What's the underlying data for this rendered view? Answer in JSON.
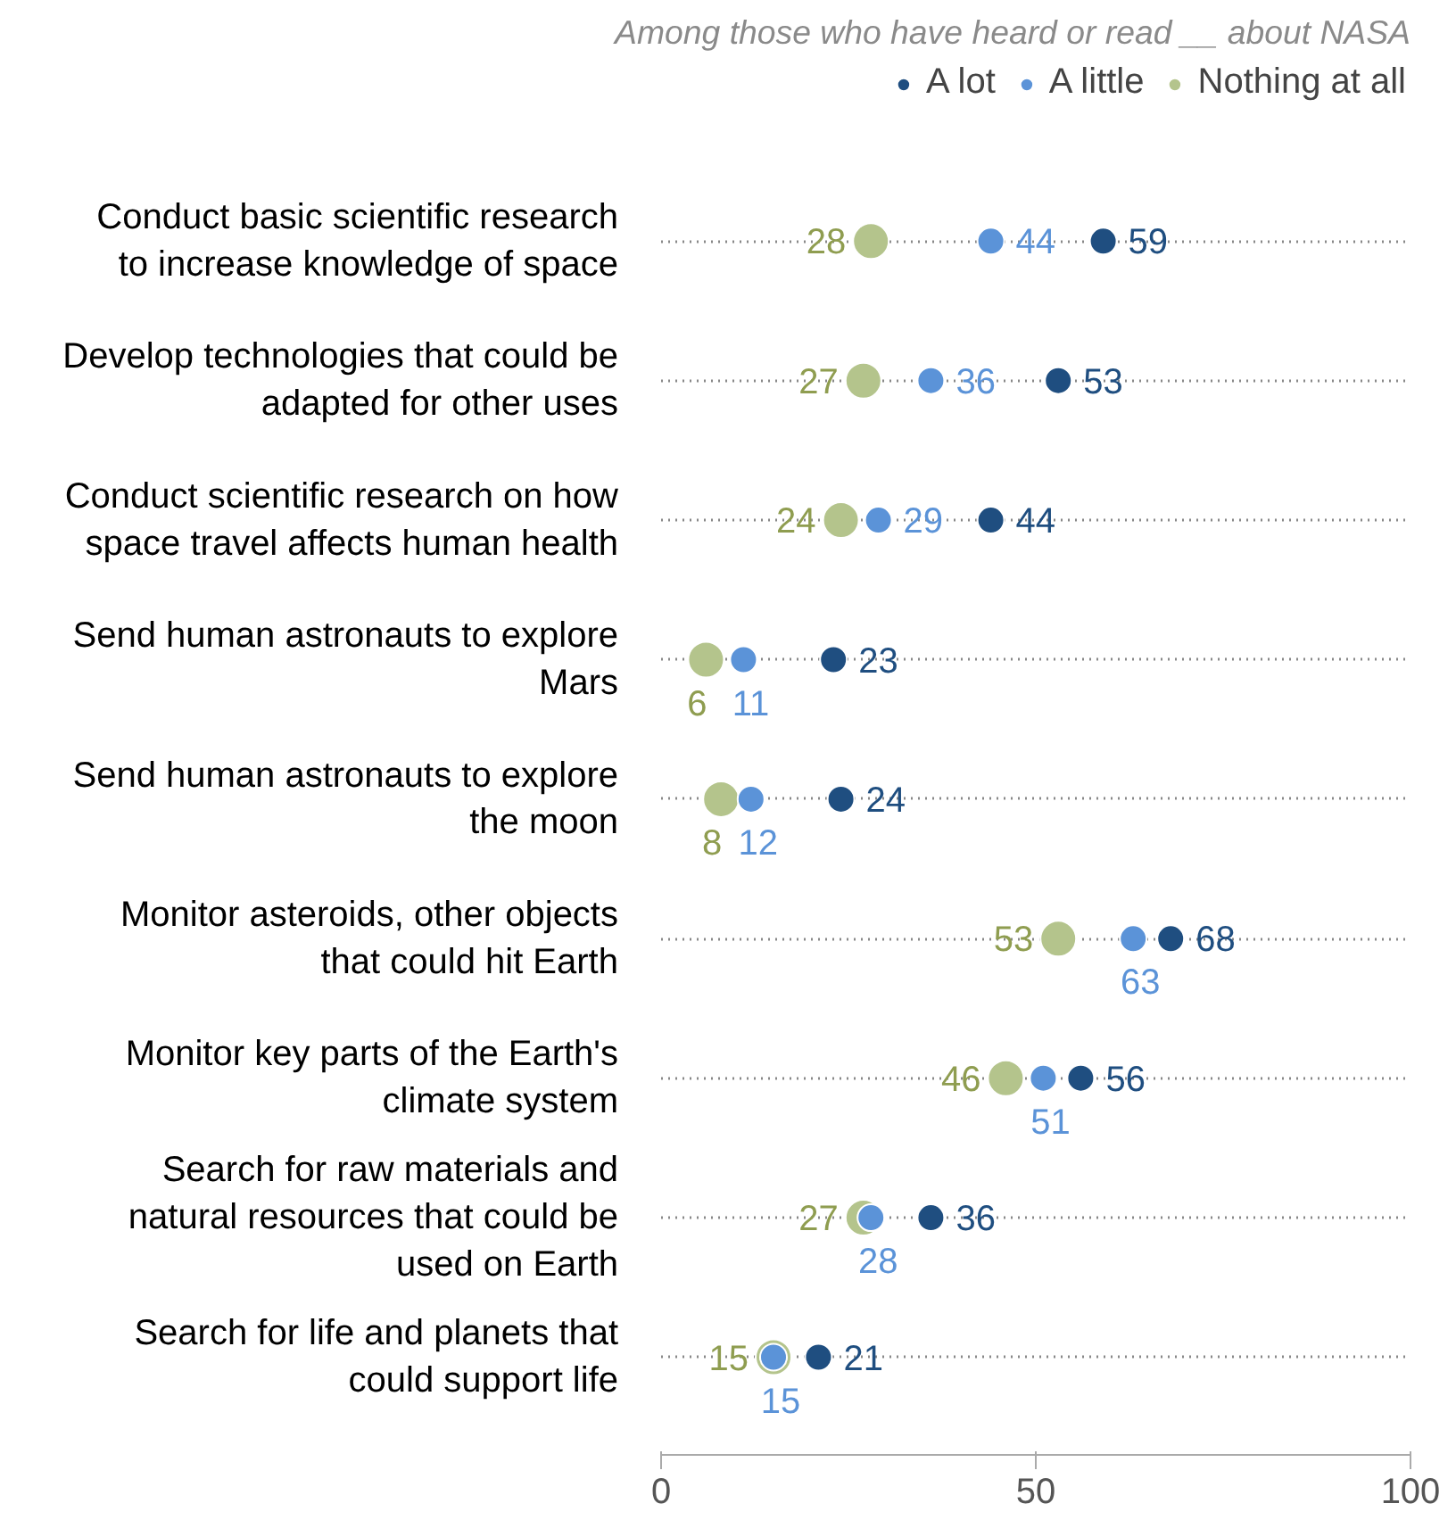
{
  "chart_data": {
    "type": "scatter",
    "orientation": "horizontal",
    "legend_title": "Among those who have heard or read __ about NASA",
    "legend": "top right",
    "categories": [
      "Conduct basic scientific research to increase knowledge of space",
      "Develop technologies that could be adapted for other uses",
      "Conduct scientific research on how space travel affects human health",
      "Send human astronauts to explore Mars",
      "Send human astronauts to explore the moon",
      "Monitor asteroids, other objects that could hit Earth",
      "Monitor key parts of the Earth's climate system",
      "Search for raw materials and natural resources that could be used on Earth",
      "Search for life and planets that could support life"
    ],
    "series": [
      {
        "name": "A lot",
        "color": "#1f4e80",
        "values": [
          59,
          53,
          44,
          23,
          24,
          68,
          56,
          36,
          21
        ]
      },
      {
        "name": "A little",
        "color": "#5b93d8",
        "values": [
          44,
          36,
          29,
          11,
          12,
          63,
          51,
          28,
          15
        ]
      },
      {
        "name": "Nothing at all",
        "color": "#b4c48c",
        "values": [
          28,
          27,
          24,
          6,
          8,
          53,
          46,
          27,
          15
        ]
      }
    ],
    "xlim": [
      0,
      100
    ],
    "xticks": [
      0,
      50,
      100
    ],
    "marker": "circle",
    "data_labels": true,
    "grid": "y"
  }
}
